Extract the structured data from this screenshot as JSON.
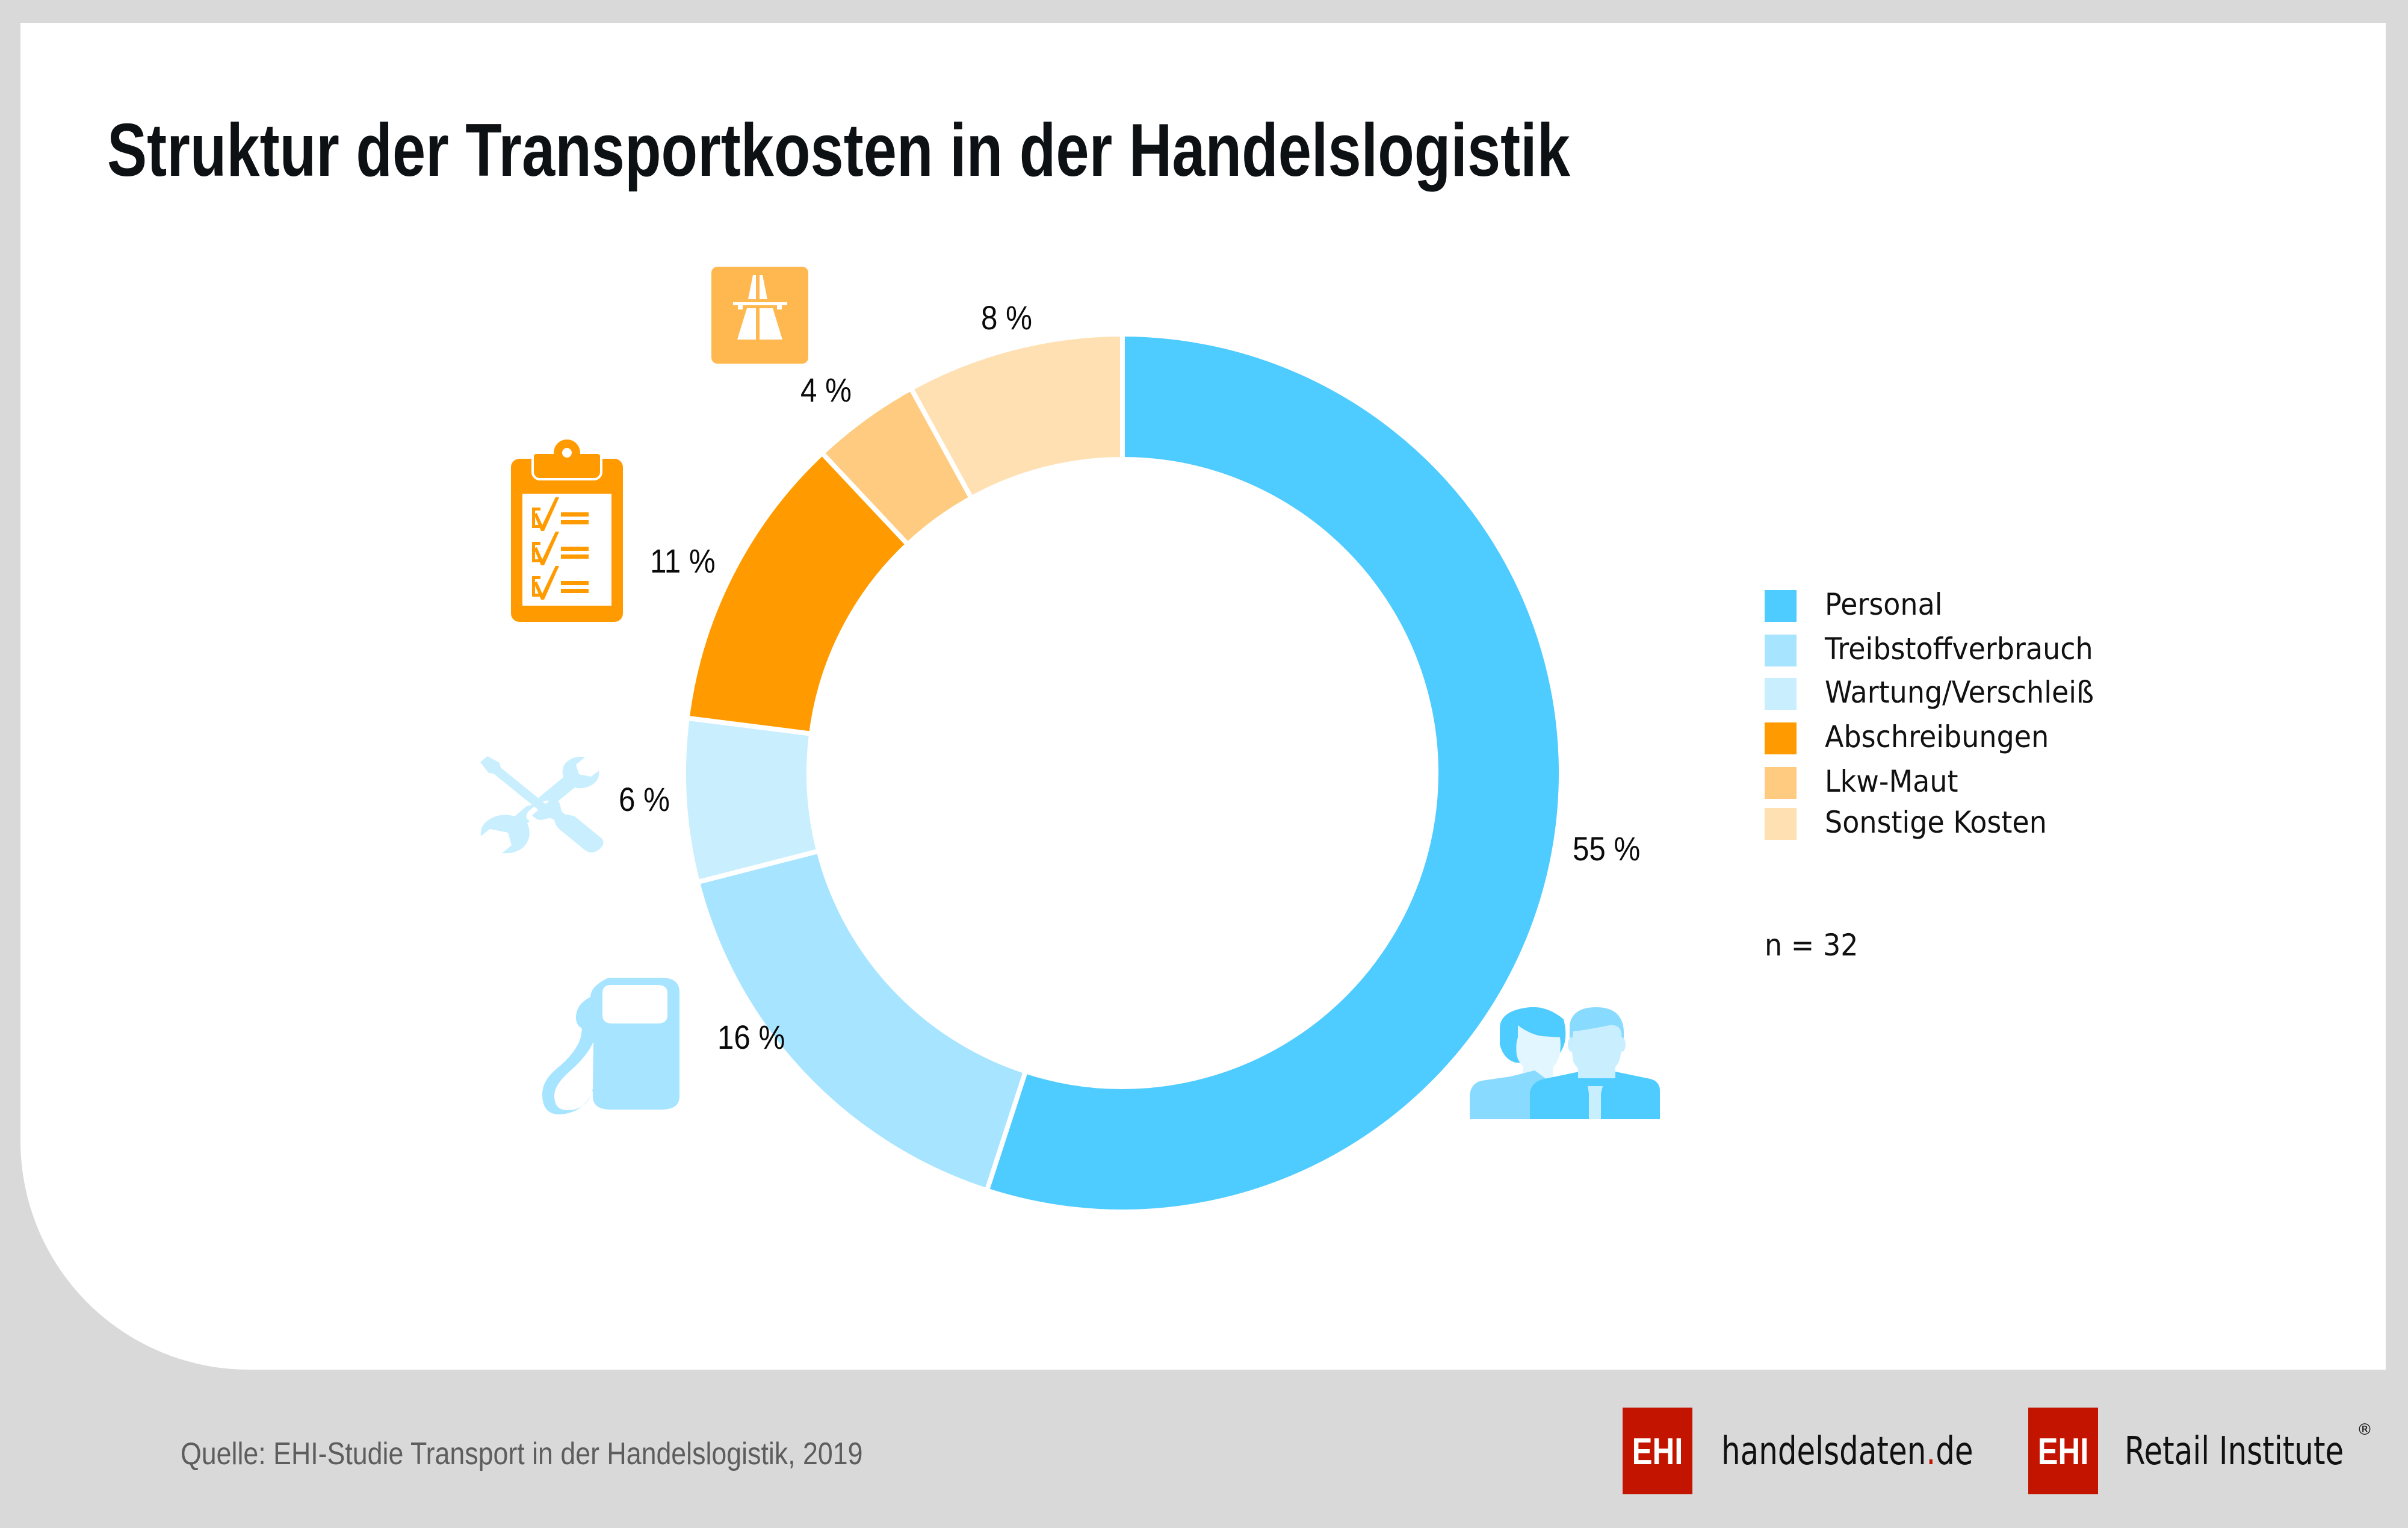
{
  "title": "Struktur der Transportkosten in der Handelslogistik",
  "colors": {
    "personal": "#4ecbff",
    "treibstoff": "#a6e4ff",
    "wartung": "#c9efff",
    "abschreibungen": "#ff9b00",
    "maut": "#ffcb80",
    "sonstige": "#ffe0b3",
    "brand_red": "#c31400",
    "background": "#d9d9d9"
  },
  "chart_data": {
    "type": "pie",
    "variant": "donut",
    "title": "Struktur der Transportkosten in der Handelslogistik",
    "unit": "%",
    "start": "top",
    "direction": "clockwise",
    "slices": [
      {
        "key": "personal",
        "label": "Personal",
        "value": 55,
        "value_label": "55 %",
        "icon": "people-icon"
      },
      {
        "key": "treibstoff",
        "label": "Treibstoffverbrauch",
        "value": 16,
        "value_label": "16 %",
        "icon": "fuel-pump-icon"
      },
      {
        "key": "wartung",
        "label": "Wartung/Verschleiß",
        "value": 6,
        "value_label": "6 %",
        "icon": "wrench-screwdriver-icon"
      },
      {
        "key": "abschreibungen",
        "label": "Abschreibungen",
        "value": 11,
        "value_label": "11 %",
        "icon": "clipboard-checklist-icon"
      },
      {
        "key": "maut",
        "label": "Lkw-Maut",
        "value": 4,
        "value_label": "4 %",
        "icon": "motorway-icon"
      },
      {
        "key": "sonstige",
        "label": "Sonstige Kosten",
        "value": 8,
        "value_label": "8 %",
        "icon": null
      }
    ],
    "legend": {
      "placement": "right",
      "entries": [
        "Personal",
        "Treibstoffverbrauch",
        "Wartung/Verschleiß",
        "Abschreibungen",
        "Lkw-Maut",
        "Sonstige Kosten"
      ]
    },
    "sample_note": "n = 32"
  },
  "footer": {
    "source": "Quelle: EHI-Studie Transport in der Handelslogistik, 2019",
    "logo1": {
      "box": "EHI",
      "text_main": "handelsdaten",
      "text_dot": ".",
      "text_tld": "de"
    },
    "logo2": {
      "box": "EHI",
      "text": "Retail Institute",
      "registered": "®"
    }
  }
}
